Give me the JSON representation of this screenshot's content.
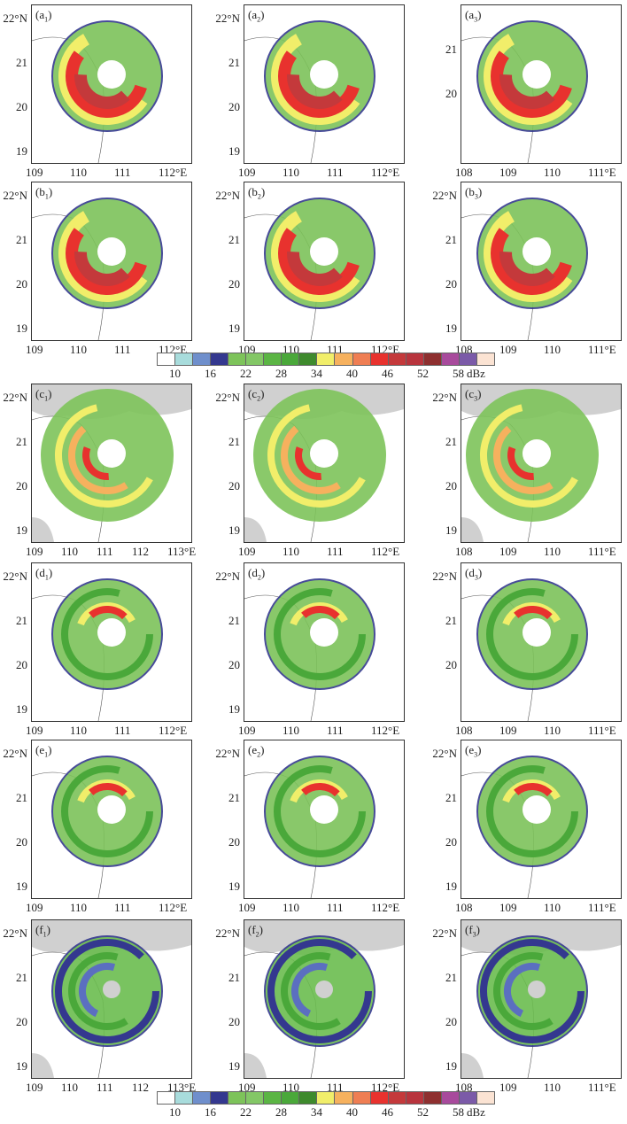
{
  "colorbar": {
    "colors": [
      "#ffffff",
      "#a8dcdc",
      "#6f8fcc",
      "#34388f",
      "#7dc35a",
      "#83c766",
      "#5bb544",
      "#4aa83a",
      "#3e8a2d",
      "#f1ee6a",
      "#f6b15e",
      "#ef7e53",
      "#e8322e",
      "#c4393b",
      "#b8343d",
      "#8e2f2f",
      "#a84a9c",
      "#7b5aa8",
      "#fbe3d3"
    ],
    "labels": [
      "10",
      "16",
      "22",
      "28",
      "34",
      "40",
      "46",
      "52",
      "58"
    ],
    "unit": "dBz"
  },
  "panels": [
    {
      "letter": "a",
      "sub": "1",
      "lat": [
        "22°N",
        "21",
        "20",
        "19"
      ],
      "lon": [
        "109",
        "110",
        "111",
        "112°E"
      ],
      "land": false,
      "style": "wrf"
    },
    {
      "letter": "a",
      "sub": "2",
      "lat": [
        "22°N",
        "21",
        "20",
        "19"
      ],
      "lon": [
        "109",
        "110",
        "111",
        "112°E"
      ],
      "land": false,
      "style": "wrf"
    },
    {
      "letter": "a",
      "sub": "3",
      "lat": [
        "21",
        "20"
      ],
      "lon": [
        "108",
        "109",
        "110",
        "111°E"
      ],
      "land": false,
      "style": "wrf"
    },
    {
      "letter": "b",
      "sub": "1",
      "lat": [
        "22°N",
        "21",
        "20",
        "19"
      ],
      "lon": [
        "109",
        "110",
        "111",
        "112°E"
      ],
      "land": false,
      "style": "wrf"
    },
    {
      "letter": "b",
      "sub": "2",
      "lat": [
        "22°N",
        "21",
        "20",
        "19"
      ],
      "lon": [
        "109",
        "110",
        "111",
        "112°E"
      ],
      "land": false,
      "style": "wrf"
    },
    {
      "letter": "b",
      "sub": "3",
      "lat": [
        "22°N",
        "21",
        "20",
        "19"
      ],
      "lon": [
        "108",
        "109",
        "110",
        "111°E"
      ],
      "land": false,
      "style": "wrf"
    },
    {
      "letter": "c",
      "sub": "1",
      "lat": [
        "22°N",
        "21",
        "20",
        "19"
      ],
      "lon": [
        "109",
        "110",
        "111",
        "112",
        "113°E"
      ],
      "land": true,
      "style": "radar"
    },
    {
      "letter": "c",
      "sub": "2",
      "lat": [
        "22°N",
        "21",
        "20",
        "19"
      ],
      "lon": [
        "109",
        "110",
        "111",
        "112°E"
      ],
      "land": true,
      "style": "radar"
    },
    {
      "letter": "c",
      "sub": "3",
      "lat": [
        "22°N",
        "21",
        "20",
        "19"
      ],
      "lon": [
        "108",
        "109",
        "110",
        "111°E"
      ],
      "land": true,
      "style": "radar"
    },
    {
      "letter": "d",
      "sub": "1",
      "lat": [
        "22°N",
        "21",
        "20",
        "19"
      ],
      "lon": [
        "109",
        "110",
        "111",
        "112°E"
      ],
      "land": false,
      "style": "weak"
    },
    {
      "letter": "d",
      "sub": "2",
      "lat": [
        "22°N",
        "21",
        "20",
        "19"
      ],
      "lon": [
        "109",
        "110",
        "111",
        "112°E"
      ],
      "land": false,
      "style": "weak"
    },
    {
      "letter": "d",
      "sub": "3",
      "lat": [
        "22°N",
        "21",
        "20"
      ],
      "lon": [
        "108",
        "109",
        "110",
        "111°E"
      ],
      "land": false,
      "style": "weak"
    },
    {
      "letter": "e",
      "sub": "1",
      "lat": [
        "22°N",
        "21",
        "20",
        "19"
      ],
      "lon": [
        "109",
        "110",
        "111",
        "112°E"
      ],
      "land": false,
      "style": "weak"
    },
    {
      "letter": "e",
      "sub": "2",
      "lat": [
        "22°N",
        "21",
        "20",
        "19"
      ],
      "lon": [
        "109",
        "110",
        "111",
        "112°E"
      ],
      "land": false,
      "style": "weak"
    },
    {
      "letter": "e",
      "sub": "3",
      "lat": [
        "22°N",
        "21",
        "20",
        "19"
      ],
      "lon": [
        "108",
        "109",
        "110",
        "111°E"
      ],
      "land": false,
      "style": "weak"
    },
    {
      "letter": "f",
      "sub": "1",
      "lat": [
        "22°N",
        "21",
        "20",
        "19"
      ],
      "lon": [
        "109",
        "110",
        "111",
        "112",
        "113°E"
      ],
      "land": true,
      "style": "green"
    },
    {
      "letter": "f",
      "sub": "2",
      "lat": [
        "22°N",
        "21",
        "20",
        "19"
      ],
      "lon": [
        "109",
        "110",
        "111",
        "112°E"
      ],
      "land": true,
      "style": "green"
    },
    {
      "letter": "f",
      "sub": "3",
      "lat": [
        "22°N",
        "21",
        "20",
        "19"
      ],
      "lon": [
        "108",
        "109",
        "110",
        "111°E"
      ],
      "land": true,
      "style": "green"
    }
  ]
}
